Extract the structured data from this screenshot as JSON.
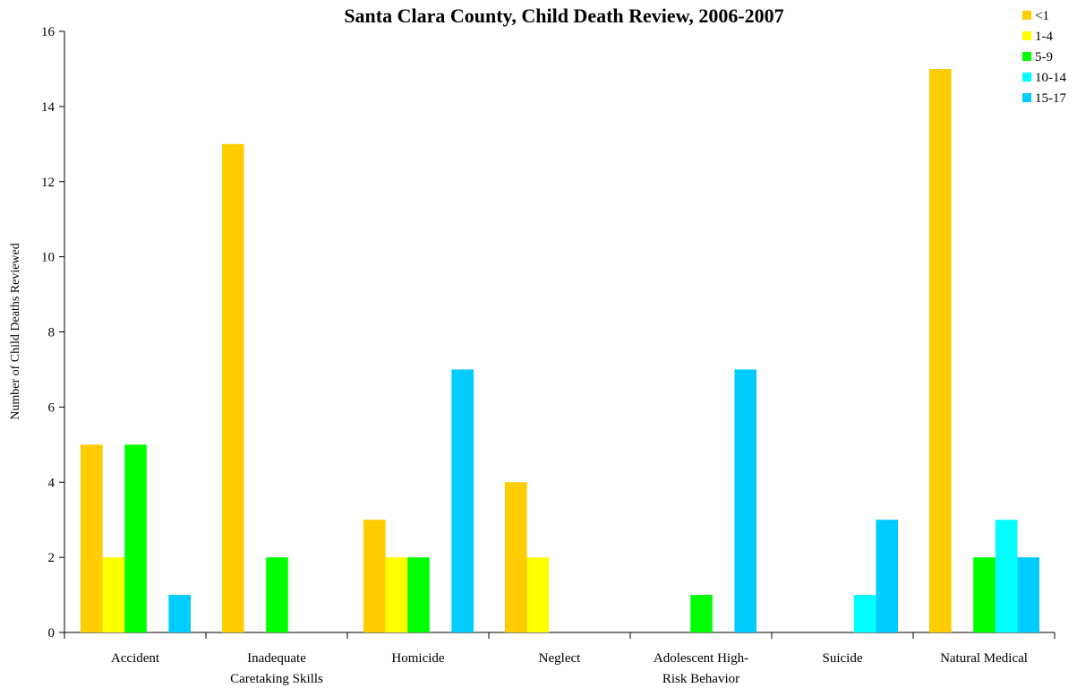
{
  "chart_data": {
    "type": "bar",
    "title": "Santa Clara County, Child Death Review, 2006-2007",
    "xlabel": "",
    "ylabel": "Number of Child Deaths Reviewed",
    "ylim": [
      0,
      16
    ],
    "yticks": [
      "0",
      "2",
      "4",
      "6",
      "8",
      "10",
      "12",
      "14",
      "16"
    ],
    "grid": false,
    "legend_position": "top-right",
    "categories": [
      [
        "Accident"
      ],
      [
        "Inadequate",
        "Caretaking Skills"
      ],
      [
        "Homicide"
      ],
      [
        "Neglect"
      ],
      [
        "Adolescent High-",
        "Risk Behavior"
      ],
      [
        "Suicide"
      ],
      [
        "Natural Medical"
      ]
    ],
    "series": [
      {
        "name": "<1",
        "color": "#FFCC00",
        "values": [
          5,
          13,
          3,
          4,
          0,
          0,
          15
        ]
      },
      {
        "name": "1-4",
        "color": "#FFFF00",
        "values": [
          2,
          0,
          2,
          2,
          0,
          0,
          0
        ]
      },
      {
        "name": "5-9",
        "color": "#00FF00",
        "values": [
          5,
          2,
          2,
          0,
          1,
          0,
          2
        ]
      },
      {
        "name": "10-14",
        "color": "#00FFFF",
        "values": [
          0,
          0,
          0,
          0,
          0,
          1,
          3
        ]
      },
      {
        "name": "15-17",
        "color": "#00CCFF",
        "values": [
          1,
          0,
          7,
          0,
          7,
          3,
          2
        ]
      }
    ]
  }
}
